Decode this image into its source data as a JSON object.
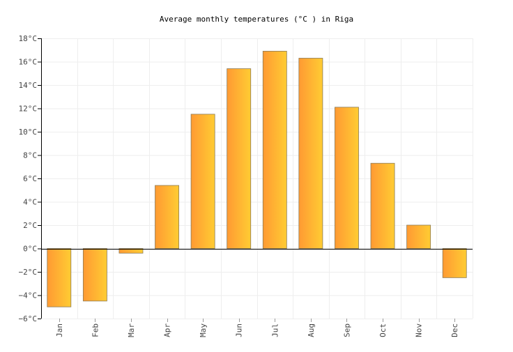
{
  "chart_data": {
    "type": "bar",
    "title": "Average monthly temperatures (°C ) in Riga",
    "xlabel": "",
    "ylabel": "",
    "categories": [
      "Jan",
      "Feb",
      "Mar",
      "Apr",
      "May",
      "Jun",
      "Jul",
      "Aug",
      "Sep",
      "Oct",
      "Nov",
      "Dec"
    ],
    "values": [
      -5.0,
      -4.5,
      -0.4,
      5.4,
      11.5,
      15.4,
      16.9,
      16.3,
      12.1,
      7.3,
      2.0,
      -2.5
    ],
    "ylim": [
      -6,
      18
    ],
    "y_ticks": [
      -6,
      -4,
      -2,
      0,
      2,
      4,
      6,
      8,
      10,
      12,
      14,
      16,
      18
    ],
    "y_tick_labels": [
      "−6°C",
      "−4°C",
      "−2°C",
      "0°C",
      "2°C",
      "4°C",
      "6°C",
      "8°C",
      "10°C",
      "12°C",
      "14°C",
      "16°C",
      "18°C"
    ],
    "grid": true,
    "legend": "none",
    "colors": {
      "bar_start": "#ff9a33",
      "bar_end": "#ffcc33",
      "bar_stroke": "#8a7a55",
      "grid": "#eeeeee",
      "axis": "#000000",
      "text": "#444444"
    }
  }
}
